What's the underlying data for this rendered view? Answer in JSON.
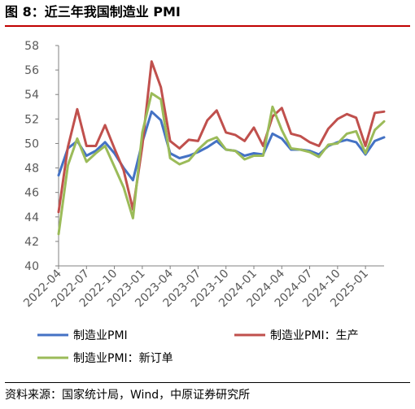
{
  "header": {
    "title": "图 8：近三年我国制造业 PMI"
  },
  "footer": {
    "source": "资料来源：国家统计局，Wind，中原证券研究所"
  },
  "colors": {
    "series": [
      "#4472c4",
      "#c0504d",
      "#9bbb59"
    ],
    "title_rule": "#c00000",
    "axis": "#808080"
  },
  "chart_data": {
    "type": "line",
    "x": [
      "2022-04",
      "2022-05",
      "2022-06",
      "2022-07",
      "2022-08",
      "2022-09",
      "2022-10",
      "2022-11",
      "2022-12",
      "2023-01",
      "2023-02",
      "2023-03",
      "2023-04",
      "2023-05",
      "2023-06",
      "2023-07",
      "2023-08",
      "2023-09",
      "2023-10",
      "2023-11",
      "2023-12",
      "2024-01",
      "2024-02",
      "2024-03",
      "2024-04",
      "2024-05",
      "2024-06",
      "2024-07",
      "2024-08",
      "2024-09",
      "2024-10",
      "2024-11",
      "2024-12",
      "2025-01",
      "2025-02",
      "2025-03"
    ],
    "tick_labels": [
      "2022-04",
      "2022-07",
      "2022-10",
      "2023-01",
      "2023-04",
      "2023-07",
      "2023-10",
      "2024-01",
      "2024-04",
      "2024-07",
      "2024-10",
      "2025-01"
    ],
    "ylim": [
      40,
      58
    ],
    "yticks": [
      40,
      42,
      44,
      46,
      48,
      50,
      52,
      54,
      56,
      58
    ],
    "grid": false,
    "legend_position": "bottom",
    "series": [
      {
        "name": "制造业PMI",
        "values": [
          47.4,
          49.6,
          50.2,
          49.0,
          49.4,
          50.1,
          49.2,
          48.0,
          47.0,
          50.1,
          52.6,
          51.9,
          49.2,
          48.8,
          49.0,
          49.3,
          49.7,
          50.2,
          49.5,
          49.4,
          49.0,
          49.2,
          49.1,
          50.8,
          50.4,
          49.5,
          49.5,
          49.4,
          49.1,
          49.8,
          50.1,
          50.3,
          50.1,
          49.1,
          50.2,
          50.5
        ]
      },
      {
        "name": "制造业PMI：生产",
        "values": [
          44.4,
          49.7,
          52.8,
          49.8,
          49.8,
          51.5,
          49.6,
          47.8,
          44.6,
          49.8,
          56.7,
          54.6,
          50.2,
          49.6,
          50.3,
          50.2,
          51.9,
          52.7,
          50.9,
          50.7,
          50.2,
          51.3,
          49.8,
          52.2,
          52.9,
          50.8,
          50.6,
          50.1,
          49.8,
          51.2,
          52.0,
          52.4,
          52.1,
          49.8,
          52.5,
          52.6
        ]
      },
      {
        "name": "制造业PMI：新订单",
        "values": [
          42.6,
          48.2,
          50.4,
          48.5,
          49.2,
          49.8,
          48.1,
          46.4,
          43.9,
          50.9,
          54.1,
          53.6,
          48.8,
          48.3,
          48.6,
          49.5,
          50.2,
          50.5,
          49.5,
          49.4,
          48.7,
          49.0,
          49.0,
          53.0,
          51.1,
          49.6,
          49.5,
          49.3,
          48.9,
          49.9,
          50.0,
          50.8,
          51.0,
          49.2,
          51.1,
          51.8
        ]
      }
    ]
  }
}
